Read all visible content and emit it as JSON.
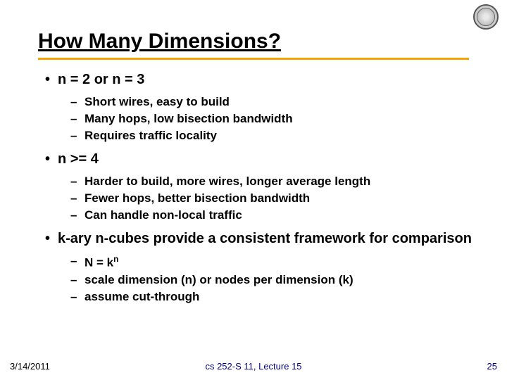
{
  "colors": {
    "title_rule": "#f5a300",
    "footer_mid": "#000080",
    "footer_num": "#000080",
    "text": "#000000",
    "background": "#ffffff"
  },
  "typography": {
    "title_fontsize": 30,
    "level1_fontsize": 20,
    "level2_fontsize": 17,
    "footer_fontsize": 13,
    "font_family": "Arial",
    "bold_all_body": true
  },
  "title": "How Many Dimensions?",
  "bullets": {
    "b1": "n = 2 or n = 3",
    "b1_1": "Short wires, easy to build",
    "b1_2": "Many hops, low bisection bandwidth",
    "b1_3": "Requires traffic locality",
    "b2": "n >= 4",
    "b2_1": "Harder to build, more wires, longer average length",
    "b2_2": "Fewer hops, better bisection bandwidth",
    "b2_3": "Can handle non-local traffic",
    "b3": "k-ary n-cubes provide a consistent framework for comparison",
    "b3_1_pre": "N = k",
    "b3_1_sup": "n",
    "b3_2": "scale dimension (n) or nodes per dimension (k)",
    "b3_3": "assume cut-through"
  },
  "footer": {
    "date": "3/14/2011",
    "center": "cs 252-S 11, Lecture 15",
    "page": "25"
  }
}
